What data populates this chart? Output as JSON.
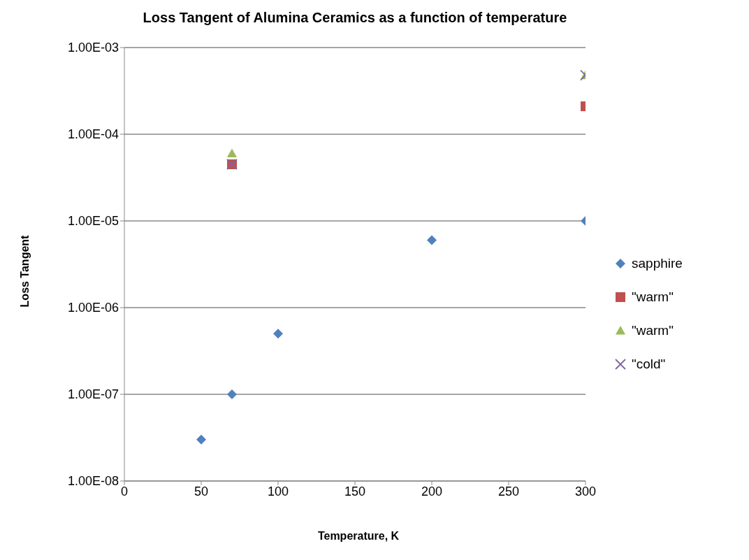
{
  "chart_data": {
    "type": "scatter",
    "title": "Loss Tangent of Alumina Ceramics as a function of temperature",
    "xlabel": "Temperature, K",
    "ylabel": "Loss Tangent",
    "log": "y",
    "grid": "y",
    "legend": "right",
    "xlim": [
      0,
      300
    ],
    "xticks": [
      0,
      50,
      100,
      150,
      200,
      250,
      300
    ],
    "ylim": [
      1e-08,
      0.001
    ],
    "yticks": [
      {
        "value": 1e-08,
        "label": "1.00E-08"
      },
      {
        "value": 1e-07,
        "label": "1.00E-07"
      },
      {
        "value": 1e-06,
        "label": "1.00E-06"
      },
      {
        "value": 1e-05,
        "label": "1.00E-05"
      },
      {
        "value": 0.0001,
        "label": "1.00E-04"
      },
      {
        "value": 0.001,
        "label": "1.00E-03"
      }
    ],
    "series": [
      {
        "name": "sapphire",
        "color": "#4f81bd",
        "marker": "diamond",
        "x": [
          50,
          70,
          100,
          200,
          300
        ],
        "values": [
          3e-08,
          1e-07,
          5e-07,
          6e-06,
          1e-05
        ]
      },
      {
        "name": "\"warm\"",
        "color": "#c0504d",
        "marker": "square",
        "x": [
          70,
          300
        ],
        "values": [
          4.5e-05,
          0.00021
        ]
      },
      {
        "name": "\"warm\"",
        "color": "#9bbb59",
        "marker": "triangle",
        "x": [
          70,
          300
        ],
        "values": [
          6e-05,
          0.00048
        ]
      },
      {
        "name": "\"cold\"",
        "color": "#8064a2",
        "marker": "cross",
        "x": [
          70,
          300
        ],
        "values": [
          4.5e-05,
          0.00048
        ]
      }
    ]
  }
}
